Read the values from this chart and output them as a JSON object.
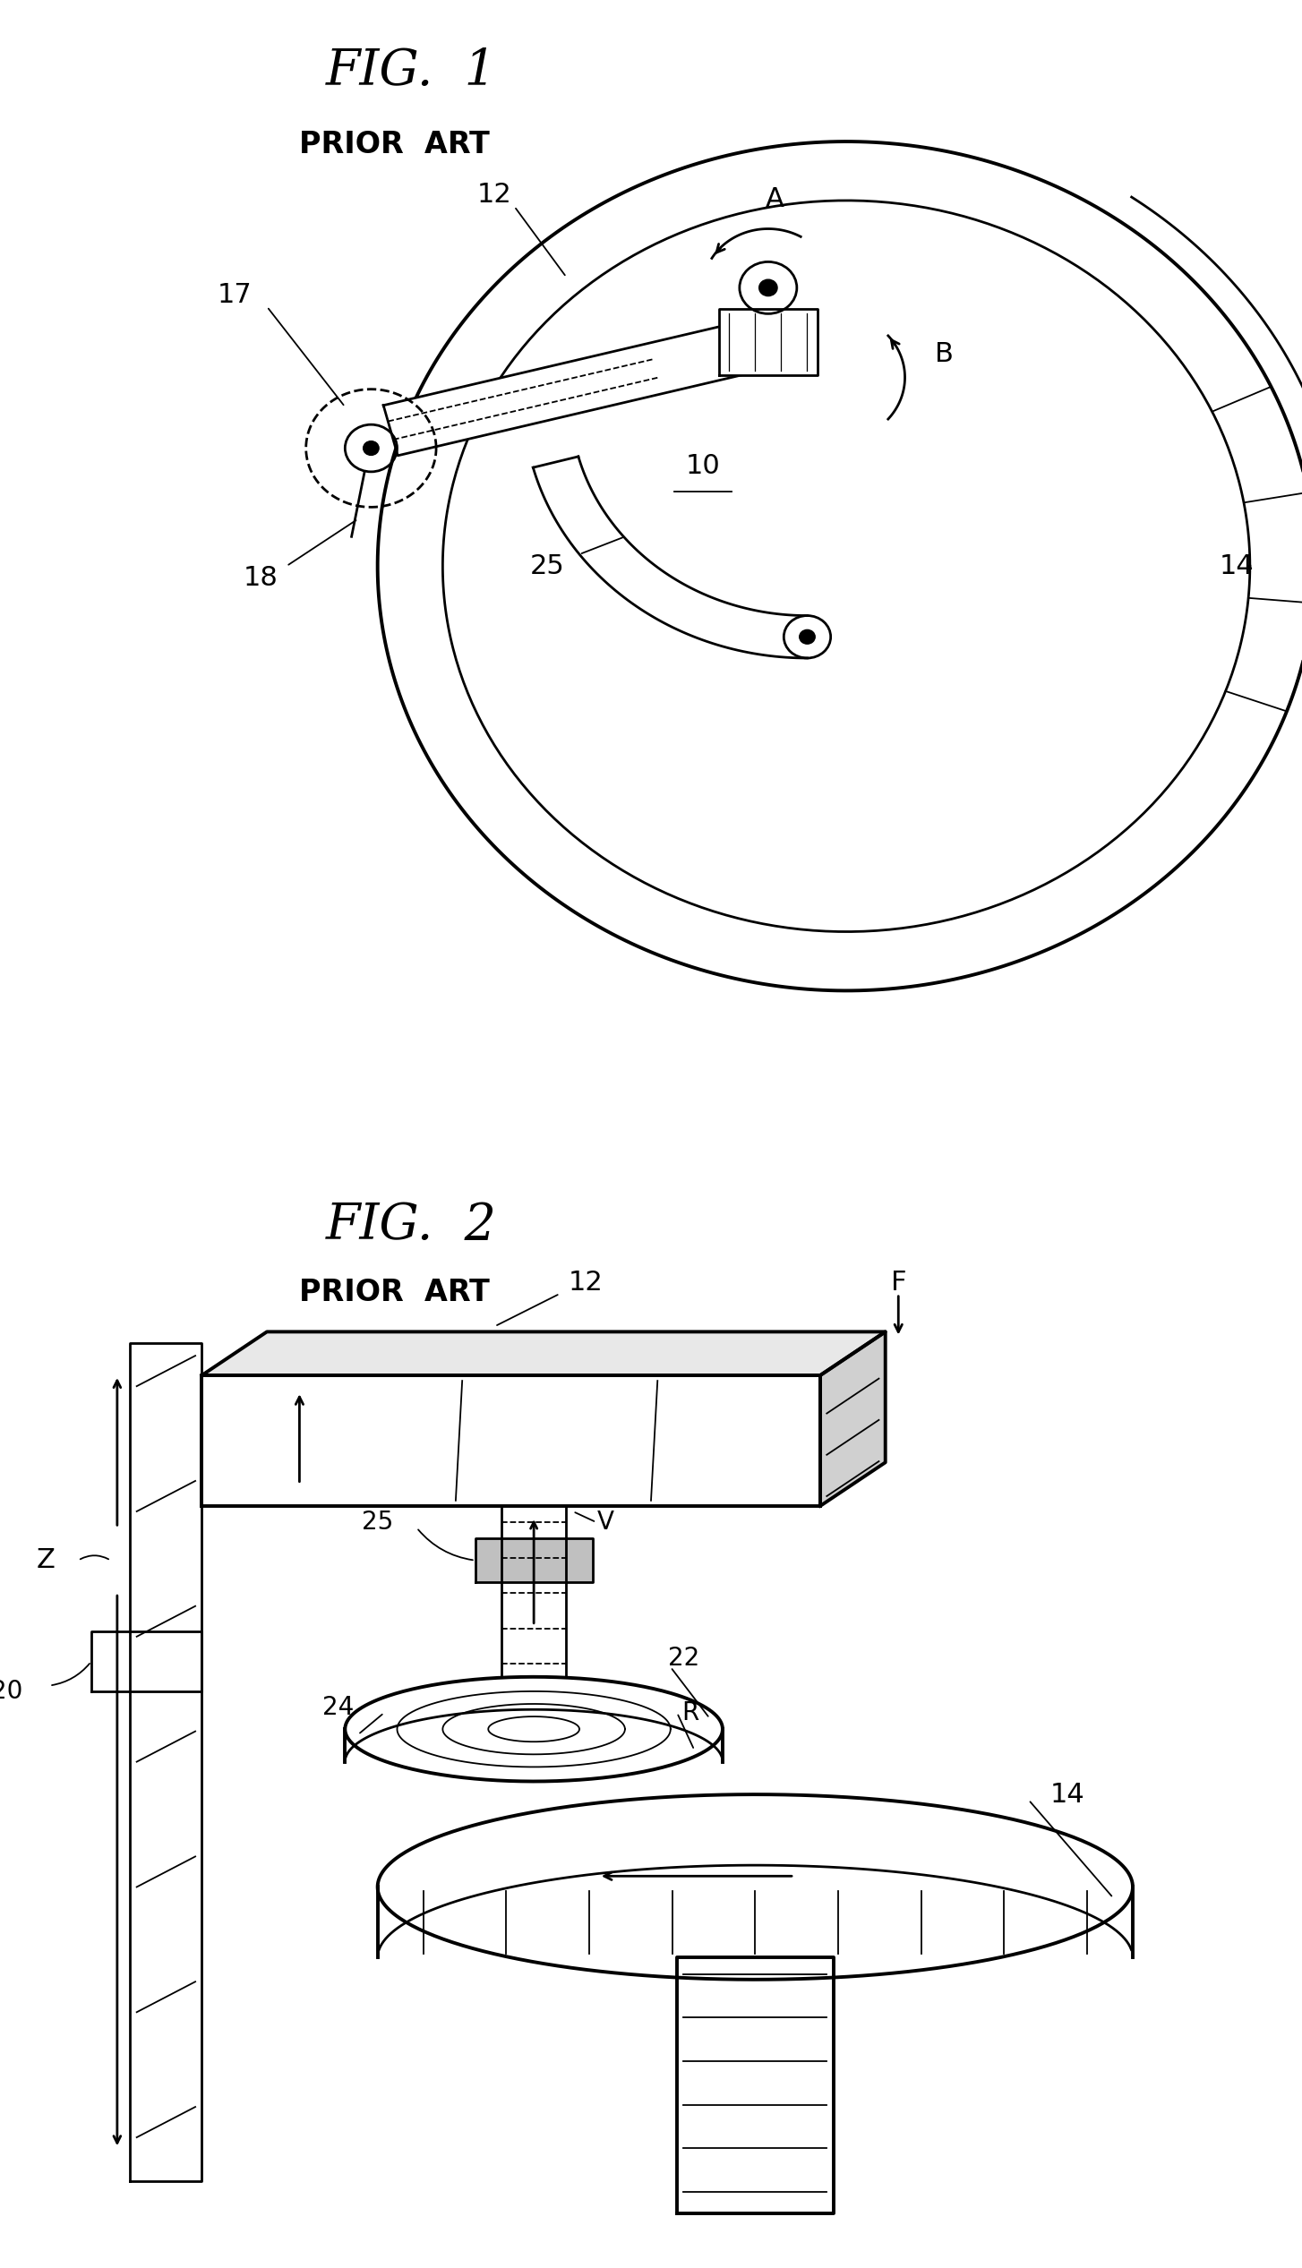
{
  "fig1_title": "FIG.  1",
  "fig1_subtitle": "PRIOR  ART",
  "fig2_title": "FIG.  2",
  "fig2_subtitle": "PRIOR  ART",
  "background_color": "#ffffff",
  "line_color": "#000000"
}
